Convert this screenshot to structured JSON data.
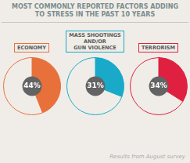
{
  "chart_data": {
    "type": "pie",
    "title": "MOST COMMONLY REPORTED FACTORS ADDING\nTO STRESS IN THE PAST 10 YEARS",
    "annotations": [
      "Results from August survey"
    ],
    "data_labels": true,
    "series": [
      {
        "name": "ECONOMY",
        "values": [
          44,
          56
        ],
        "value_labels": [
          "44%",
          null
        ],
        "colors": [
          "#e8703a",
          "#f0ede8"
        ]
      },
      {
        "name": "MASS SHOOTINGS\nAND/OR\nGUN VIOLENCE",
        "values": [
          31,
          69
        ],
        "value_labels": [
          "31%",
          null
        ],
        "colors": [
          "#18aac8",
          "#f0ede8"
        ]
      },
      {
        "name": "TERRORISM",
        "values": [
          34,
          66
        ],
        "value_labels": [
          "34%",
          null
        ],
        "colors": [
          "#e02040",
          "#f0ede8"
        ]
      }
    ]
  }
}
